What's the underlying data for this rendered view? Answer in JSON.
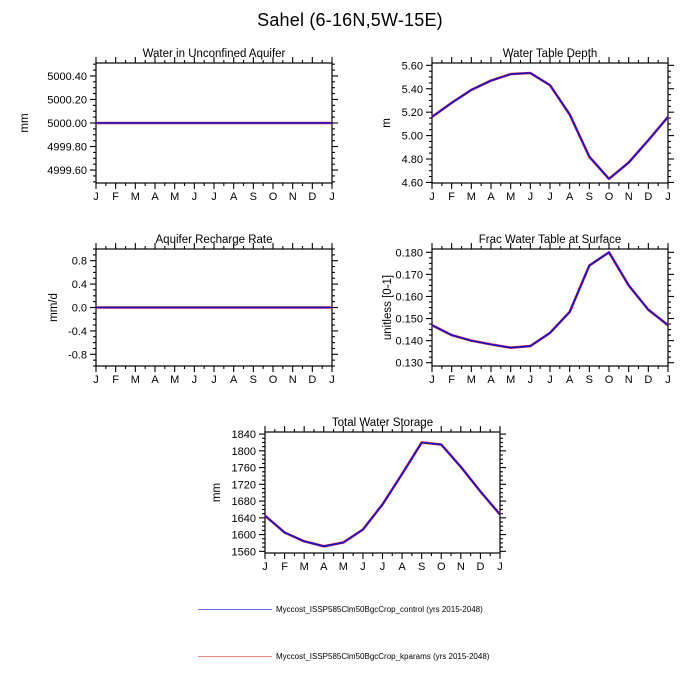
{
  "title": "Sahel (6-16N,5W-15E)",
  "chart_data": [
    {
      "id": "water-in-unconfined-aquifer",
      "type": "line",
      "title": "Water in Unconfined Aquifer",
      "ylabel": "mm",
      "x_categories": [
        "J",
        "F",
        "M",
        "A",
        "M",
        "J",
        "J",
        "A",
        "S",
        "O",
        "N",
        "D",
        "J"
      ],
      "ylim": [
        4999.49,
        5000.51
      ],
      "yticks": [
        4999.6,
        4999.8,
        5000.0,
        5000.2,
        5000.4
      ],
      "ytick_labels": [
        "4999.60",
        "4999.80",
        "5000.00",
        "5000.20",
        "5000.40"
      ],
      "y_minor_step": 0.05,
      "grid": false,
      "series": [
        {
          "name": "Myccost_ISSP585Clm50BgcCrop_control",
          "color": "#1010d0",
          "values": [
            5000.0,
            5000.0,
            5000.0,
            5000.0,
            5000.0,
            5000.0,
            5000.0,
            5000.0,
            5000.0,
            5000.0,
            5000.0,
            5000.0,
            5000.0
          ]
        },
        {
          "name": "Myccost_ISSP585Clm50BgcCrop_kparams",
          "color": "#e03030",
          "values": [
            5000.0,
            5000.0,
            5000.0,
            5000.0,
            5000.0,
            5000.0,
            5000.0,
            5000.0,
            5000.0,
            5000.0,
            5000.0,
            5000.0,
            5000.0
          ]
        }
      ]
    },
    {
      "id": "water-table-depth",
      "type": "line",
      "title": "Water Table Depth",
      "ylabel": "m",
      "x_categories": [
        "J",
        "F",
        "M",
        "A",
        "M",
        "J",
        "J",
        "A",
        "S",
        "O",
        "N",
        "D",
        "J"
      ],
      "ylim": [
        4.595,
        5.62
      ],
      "yticks": [
        4.6,
        4.8,
        5.0,
        5.2,
        5.4,
        5.6
      ],
      "ytick_labels": [
        "4.60",
        "4.80",
        "5.00",
        "5.20",
        "5.40",
        "5.60"
      ],
      "y_minor_step": 0.05,
      "grid": false,
      "series": [
        {
          "name": "Myccost_ISSP585Clm50BgcCrop_control",
          "color": "#1010d0",
          "values": [
            5.16,
            5.28,
            5.39,
            5.47,
            5.525,
            5.535,
            5.43,
            5.18,
            4.82,
            4.63,
            4.77,
            4.96,
            5.16
          ]
        },
        {
          "name": "Myccost_ISSP585Clm50BgcCrop_kparams",
          "color": "#e03030",
          "values": [
            5.16,
            5.28,
            5.39,
            5.47,
            5.525,
            5.535,
            5.43,
            5.18,
            4.82,
            4.63,
            4.77,
            4.96,
            5.16
          ]
        }
      ]
    },
    {
      "id": "aquifer-recharge-rate",
      "type": "line",
      "title": "Aquifer Recharge Rate",
      "ylabel": "mm/d",
      "x_categories": [
        "J",
        "F",
        "M",
        "A",
        "M",
        "J",
        "J",
        "A",
        "S",
        "O",
        "N",
        "D",
        "J"
      ],
      "ylim": [
        -1.0,
        1.0
      ],
      "yticks": [
        -0.8,
        -0.4,
        0.0,
        0.4,
        0.8
      ],
      "ytick_labels": [
        "-0.8",
        "-0.4",
        "0.0",
        "0.4",
        "0.8"
      ],
      "y_minor_step": 0.1,
      "grid": false,
      "series": [
        {
          "name": "Myccost_ISSP585Clm50BgcCrop_control",
          "color": "#1010d0",
          "values": [
            0.0,
            0.0,
            0.0,
            0.0,
            0.0,
            0.0,
            0.0,
            0.0,
            0.0,
            0.0,
            0.0,
            0.0,
            0.0
          ]
        },
        {
          "name": "Myccost_ISSP585Clm50BgcCrop_kparams",
          "color": "#e03030",
          "values": [
            0.0,
            0.0,
            0.0,
            0.0,
            0.0,
            0.0,
            0.0,
            0.0,
            0.0,
            0.0,
            0.0,
            0.0,
            0.0
          ]
        }
      ]
    },
    {
      "id": "frac-water-table-at-surface",
      "type": "line",
      "title": "Frac Water Table at Surface",
      "ylabel": "unitless [0-1]",
      "x_categories": [
        "J",
        "F",
        "M",
        "A",
        "M",
        "J",
        "J",
        "A",
        "S",
        "O",
        "N",
        "D",
        "J"
      ],
      "ylim": [
        0.1285,
        0.1815
      ],
      "yticks": [
        0.13,
        0.14,
        0.15,
        0.16,
        0.17,
        0.18
      ],
      "ytick_labels": [
        "0.130",
        "0.140",
        "0.150",
        "0.160",
        "0.170",
        "0.180"
      ],
      "y_minor_step": 0.0025,
      "grid": false,
      "series": [
        {
          "name": "Myccost_ISSP585Clm50BgcCrop_control",
          "color": "#1010d0",
          "values": [
            0.147,
            0.1425,
            0.14,
            0.1383,
            0.1368,
            0.1375,
            0.1435,
            0.153,
            0.174,
            0.18,
            0.165,
            0.154,
            0.147
          ]
        },
        {
          "name": "Myccost_ISSP585Clm50BgcCrop_kparams",
          "color": "#e03030",
          "values": [
            0.147,
            0.1425,
            0.14,
            0.1383,
            0.1368,
            0.1375,
            0.1435,
            0.153,
            0.174,
            0.18,
            0.165,
            0.154,
            0.147
          ]
        }
      ]
    },
    {
      "id": "total-water-storage",
      "type": "line",
      "title": "Total Water Storage",
      "ylabel": "mm",
      "x_categories": [
        "J",
        "F",
        "M",
        "A",
        "M",
        "J",
        "J",
        "A",
        "S",
        "O",
        "N",
        "D",
        "J"
      ],
      "ylim": [
        1556,
        1845
      ],
      "yticks": [
        1560,
        1600,
        1640,
        1680,
        1720,
        1760,
        1800,
        1840
      ],
      "ytick_labels": [
        "1560",
        "1600",
        "1640",
        "1680",
        "1720",
        "1760",
        "1800",
        "1840"
      ],
      "y_minor_step": 10,
      "grid": false,
      "series": [
        {
          "name": "Myccost_ISSP585Clm50BgcCrop_control",
          "color": "#1010d0",
          "values": [
            1645,
            1605,
            1584,
            1572,
            1581,
            1612,
            1672,
            1745,
            1820,
            1815,
            1762,
            1703,
            1648
          ]
        },
        {
          "name": "Myccost_ISSP585Clm50BgcCrop_kparams",
          "color": "#e03030",
          "values": [
            1645,
            1605,
            1584,
            1572,
            1581,
            1612,
            1672,
            1745,
            1820,
            1815,
            1762,
            1703,
            1648
          ]
        }
      ]
    }
  ],
  "legend": {
    "entries": [
      {
        "label": "Myccost_ISSP585Clm50BgcCrop_control (yrs 2015-2048)",
        "color": "#1010d0"
      },
      {
        "label": "Myccost_ISSP585Clm50BgcCrop_kparams (yrs 2015-2048)",
        "color": "#e03030"
      }
    ]
  }
}
